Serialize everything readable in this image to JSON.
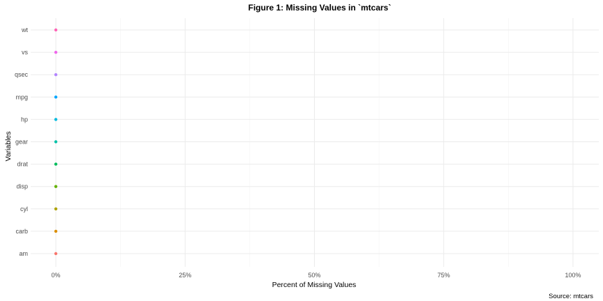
{
  "chart_data": {
    "type": "scatter",
    "title": "Figure 1: Missing Values in `mtcars`",
    "xlabel": "Percent of Missing Values",
    "ylabel": "Variables",
    "caption": "Source: mtcars",
    "xlim": [
      0,
      1
    ],
    "x_ticks": [
      0,
      0.25,
      0.5,
      0.75,
      1
    ],
    "x_tick_labels": [
      "0%",
      "25%",
      "50%",
      "75%",
      "100%"
    ],
    "grid": true,
    "legend": "none",
    "categories": [
      "am",
      "carb",
      "cyl",
      "disp",
      "drat",
      "gear",
      "hp",
      "mpg",
      "qsec",
      "vs",
      "wt"
    ],
    "values": [
      0,
      0,
      0,
      0,
      0,
      0,
      0,
      0,
      0,
      0,
      0
    ],
    "colors": [
      "#F8766D",
      "#DB8E00",
      "#AEA200",
      "#64B200",
      "#00BD5C",
      "#00C1A7",
      "#00BADE",
      "#00A6FF",
      "#B385FF",
      "#EF67EB",
      "#FF63B6"
    ]
  }
}
